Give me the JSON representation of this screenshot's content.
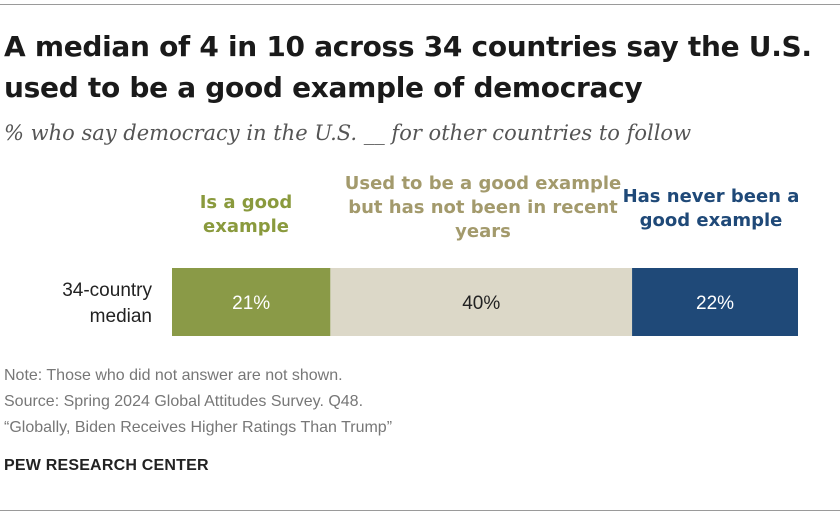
{
  "title": "A median of 4 in 10 across 34 countries say the U.S. used to be a good example of democracy",
  "subtitle": "% who say democracy in the U.S. __ for other countries to follow",
  "notes": {
    "note": "Note: Those who did not answer are not shown.",
    "source": "Source: Spring 2024 Global Attitudes Survey. Q48.",
    "report": "“Globally, Biden Receives Higher Ratings Than Trump”"
  },
  "brand": "PEW RESEARCH CENTER",
  "chart_data": {
    "type": "bar",
    "orientation": "horizontal",
    "stacked": true,
    "categories": [
      "34-country median"
    ],
    "series": [
      {
        "name": "Is a good example",
        "values": [
          21
        ],
        "color": "#8a9a47"
      },
      {
        "name": "Used to be a good example but has not been in recent years",
        "values": [
          40
        ],
        "color": "#dcd8c8"
      },
      {
        "name": "Has never been a good example",
        "values": [
          22
        ],
        "color": "#1f4978"
      }
    ],
    "data_labels": [
      "21%",
      "40%",
      "22%"
    ],
    "data_label_colors": [
      "#ffffff",
      "#222222",
      "#ffffff"
    ],
    "legend_placement": "top, above each segment",
    "grid": false
  }
}
